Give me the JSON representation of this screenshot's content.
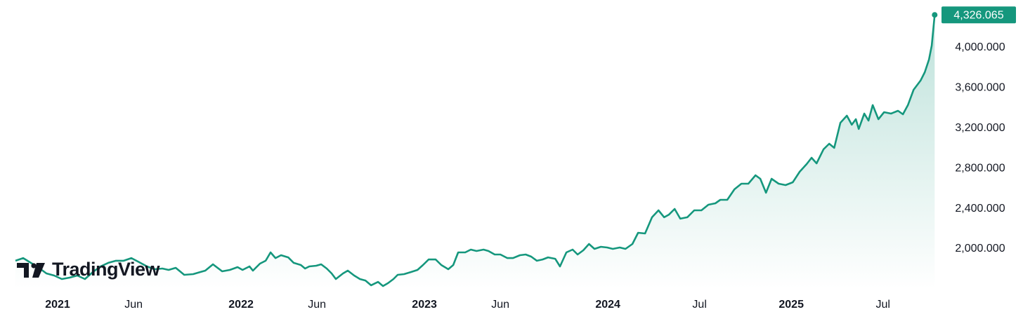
{
  "chart_data": {
    "type": "line",
    "watermark": "TradingView",
    "color": "#15977d",
    "fill": true,
    "x": [
      2020.77,
      2020.812,
      2020.854,
      2020.897,
      2020.939,
      2020.981,
      2021.023,
      2021.065,
      2021.107,
      2021.149,
      2021.192,
      2021.234,
      2021.276,
      2021.318,
      2021.36,
      2021.402,
      2021.444,
      2021.487,
      2021.529,
      2021.571,
      2021.605,
      2021.644,
      2021.69,
      2021.739,
      2021.778,
      2021.805,
      2021.847,
      2021.897,
      2021.939,
      2021.981,
      2022.008,
      2022.046,
      2022.065,
      2022.103,
      2022.134,
      2022.161,
      2022.188,
      2022.218,
      2022.257,
      2022.287,
      2022.326,
      2022.349,
      2022.372,
      2022.41,
      2022.437,
      2022.467,
      2022.494,
      2022.517,
      2022.556,
      2022.582,
      2022.617,
      2022.648,
      2022.678,
      2022.709,
      2022.747,
      2022.774,
      2022.801,
      2022.831,
      2022.854,
      2022.889,
      2022.927,
      2022.962,
      2022.992,
      2023.023,
      2023.061,
      2023.092,
      2023.13,
      2023.157,
      2023.184,
      2023.222,
      2023.253,
      2023.284,
      2023.322,
      2023.349,
      2023.383,
      2023.414,
      2023.452,
      2023.483,
      2023.521,
      2023.552,
      2023.582,
      2023.613,
      2023.644,
      2023.674,
      2023.713,
      2023.739,
      2023.774,
      2023.808,
      2023.835,
      2023.866,
      2023.897,
      2023.927,
      2023.962,
      2023.996,
      2024.027,
      2024.065,
      2024.096,
      2024.134,
      2024.165,
      2024.203,
      2024.241,
      2024.276,
      2024.307,
      2024.333,
      2024.364,
      2024.395,
      2024.433,
      2024.471,
      2024.51,
      2024.548,
      2024.586,
      2024.613,
      2024.651,
      2024.69,
      2024.728,
      2024.766,
      2024.805,
      2024.831,
      2024.862,
      2024.893,
      2024.931,
      2024.969,
      2025.008,
      2025.046,
      2025.084,
      2025.111,
      2025.138,
      2025.176,
      2025.207,
      2025.234,
      2025.268,
      2025.303,
      2025.33,
      2025.352,
      2025.368,
      2025.398,
      2025.421,
      2025.444,
      2025.475,
      2025.506,
      2025.544,
      2025.582,
      2025.609,
      2025.636,
      2025.667,
      2025.705,
      2025.728,
      2025.751,
      2025.766,
      2025.782
    ],
    "values": [
      1882,
      1909,
      1861,
      1812,
      1756,
      1735,
      1700,
      1714,
      1735,
      1700,
      1770,
      1826,
      1861,
      1882,
      1882,
      1909,
      1868,
      1826,
      1798,
      1805,
      1791,
      1812,
      1742,
      1749,
      1770,
      1784,
      1847,
      1777,
      1791,
      1819,
      1791,
      1826,
      1784,
      1854,
      1882,
      1965,
      1909,
      1937,
      1916,
      1861,
      1840,
      1805,
      1826,
      1833,
      1847,
      1805,
      1756,
      1700,
      1756,
      1784,
      1735,
      1700,
      1686,
      1638,
      1672,
      1631,
      1659,
      1700,
      1742,
      1749,
      1770,
      1791,
      1840,
      1895,
      1895,
      1840,
      1798,
      1840,
      1965,
      1965,
      1993,
      1979,
      1993,
      1979,
      1944,
      1944,
      1909,
      1909,
      1937,
      1944,
      1923,
      1882,
      1895,
      1916,
      1902,
      1826,
      1965,
      1993,
      1944,
      1986,
      2049,
      2000,
      2021,
      2014,
      2000,
      2014,
      2000,
      2049,
      2160,
      2153,
      2314,
      2383,
      2314,
      2341,
      2397,
      2300,
      2314,
      2383,
      2383,
      2439,
      2453,
      2488,
      2488,
      2592,
      2648,
      2648,
      2732,
      2697,
      2558,
      2697,
      2648,
      2634,
      2662,
      2767,
      2843,
      2906,
      2850,
      2990,
      3045,
      3004,
      3254,
      3324,
      3234,
      3289,
      3192,
      3345,
      3275,
      3429,
      3289,
      3359,
      3345,
      3373,
      3338,
      3429,
      3582,
      3673,
      3756,
      3882,
      4021,
      4326.065
    ],
    "value_labels": [
      null,
      null,
      null,
      null,
      null,
      null,
      null,
      null,
      null,
      null,
      null,
      null,
      null,
      null,
      null,
      null,
      null,
      null,
      null,
      null,
      null,
      null,
      null,
      null,
      null,
      null,
      null,
      null,
      null,
      null,
      null,
      null,
      null,
      null,
      null,
      null,
      null,
      null,
      null,
      null,
      null,
      null,
      null,
      null,
      null,
      null,
      null,
      null,
      null,
      null,
      null,
      null,
      null,
      null,
      null,
      null,
      null,
      null,
      null,
      null,
      null,
      null,
      null,
      null,
      null,
      null,
      null,
      null,
      null,
      null,
      null,
      null,
      null,
      null,
      null,
      null,
      null,
      null,
      null,
      null,
      null,
      null,
      null,
      null,
      null,
      null,
      null,
      null,
      null,
      null,
      null,
      null,
      null,
      null,
      null,
      null,
      null,
      null,
      null,
      null,
      null,
      null,
      null,
      null,
      null,
      null,
      null,
      null,
      null,
      null,
      null,
      null,
      null,
      null,
      null,
      null,
      null,
      null,
      null,
      null,
      null,
      null,
      null,
      null,
      null,
      null,
      null,
      null,
      null,
      null,
      null,
      null,
      null,
      null,
      null,
      null,
      null,
      null,
      null,
      null,
      null,
      null,
      null,
      null,
      null,
      null,
      null,
      null,
      null,
      "4,326.065"
    ],
    "xlim": [
      2020.77,
      2025.8
    ],
    "xticks": [
      2021,
      {
        "value": 2021.414,
        "label": "Jun"
      },
      2022,
      {
        "value": 2022.414,
        "label": "Jun"
      },
      2023,
      {
        "value": 2023.414,
        "label": "Jun"
      },
      2024,
      {
        "value": 2024.5,
        "label": "Jul"
      },
      2025,
      {
        "value": 2025.5,
        "label": "Jul"
      }
    ],
    "ylim": [
      1600,
      4400
    ],
    "yticks": [
      {
        "value": 2000,
        "label": "2,000.000"
      },
      {
        "value": 2400,
        "label": "2,400.000"
      },
      {
        "value": 2800,
        "label": "2,800.000"
      },
      {
        "value": 3200,
        "label": "3,200.000"
      },
      {
        "value": 3600,
        "label": "3,600.000"
      },
      {
        "value": 4000,
        "label": "4,000.000"
      }
    ]
  }
}
